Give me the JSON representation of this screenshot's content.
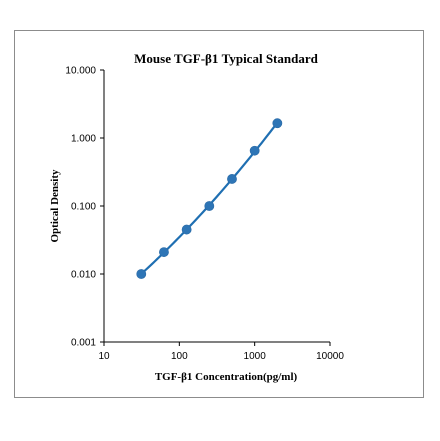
{
  "chart_data": {
    "type": "scatter",
    "title": "Mouse TGF-β1 Typical Standard",
    "xlabel": "TGF-β1 Concentration(pg/ml)",
    "ylabel": "Optical Density",
    "x_scale": "log",
    "y_scale": "log",
    "xlim": [
      10,
      10000
    ],
    "ylim": [
      0.001,
      10
    ],
    "x_ticks": [
      "10",
      "100",
      "1000",
      "10000"
    ],
    "y_ticks": [
      "10.000",
      "1.000",
      "0.100",
      "0.010",
      "0.001"
    ],
    "grid": false,
    "legend": "none",
    "series": [
      {
        "x": [
          31.25,
          62.5,
          125,
          250,
          500,
          1000,
          2000
        ],
        "y": [
          0.01,
          0.021,
          0.045,
          0.1,
          0.25,
          0.65,
          1.65
        ]
      }
    ],
    "colors": {
      "marker": "#2e75b6",
      "line": "#1f6fb2",
      "axis": "#000000",
      "frame": "#8c8c8c"
    }
  }
}
